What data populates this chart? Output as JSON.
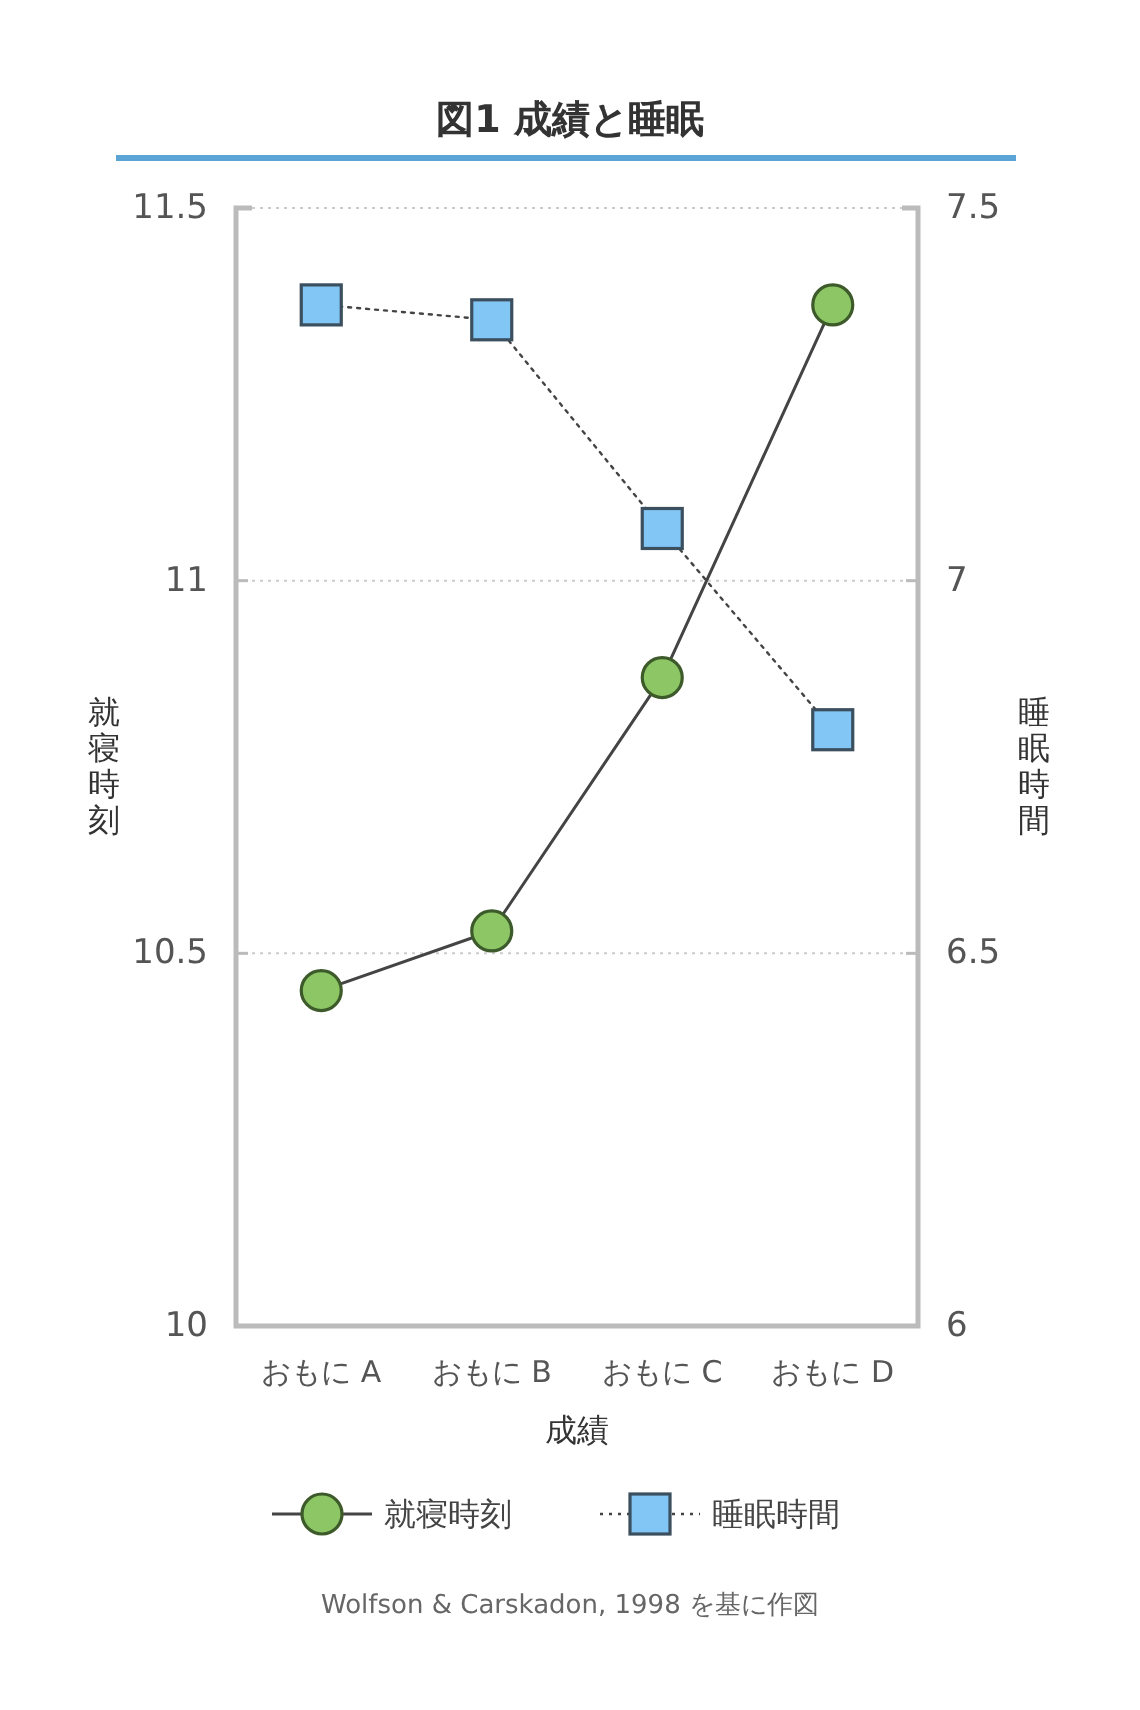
{
  "chart_data": {
    "type": "line",
    "title": "図1 成績と睡眠",
    "xlabel": "成績",
    "ylabel": "就寝時刻",
    "y2label": "睡眠時間",
    "categories": [
      "おもに A",
      "おもに B",
      "おもに C",
      "おもに D"
    ],
    "series": [
      {
        "name": "就寝時刻",
        "color": "#8cc665",
        "values": [
          10.45,
          10.53,
          10.87,
          11.37
        ],
        "marker": "circle",
        "line_style": "solid"
      },
      {
        "name": "睡眠時間",
        "color": "#82c6f5",
        "values": [
          7.37,
          7.35,
          7.07,
          6.8
        ],
        "marker": "square",
        "line_style": "dotted",
        "axis": "y2"
      }
    ],
    "ylim": [
      10,
      11.5
    ],
    "yticks": [
      10,
      10.5,
      11,
      11.5
    ],
    "y2lim": [
      6,
      7.5
    ],
    "y2ticks": [
      6,
      6.5,
      7,
      7.5
    ],
    "grid": "y",
    "legend": "bottom",
    "annotations": [
      "Wolfson & Carskadon, 1998 を基に作図"
    ]
  }
}
